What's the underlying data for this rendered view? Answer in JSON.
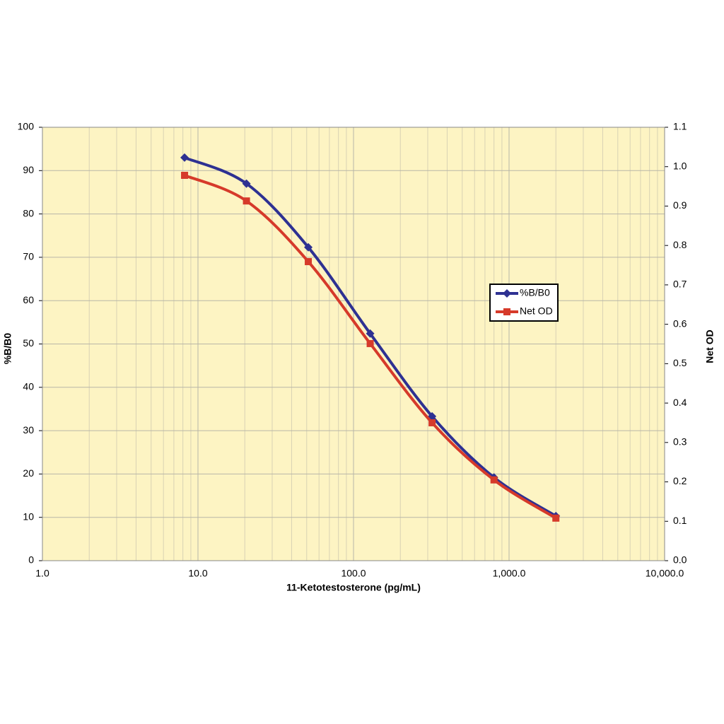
{
  "chart_data": {
    "type": "line",
    "x_label": "11-Ketotestosterone (pg/mL)",
    "y_label": "%B/B0",
    "y2_label": "Net OD",
    "x": [
      8.2,
      20.5,
      51.2,
      128,
      320,
      800,
      2000
    ],
    "series": [
      {
        "name": "%B/B0",
        "color": "#2e3192",
        "marker": "diamond",
        "values": [
          93.0,
          87.0,
          72.3,
          52.4,
          33.3,
          19.2,
          10.3
        ]
      },
      {
        "name": "Net OD",
        "color": "#d63a2a",
        "marker": "square",
        "axis": "y2",
        "values": [
          0.978,
          0.913,
          0.759,
          0.551,
          0.35,
          0.205,
          0.108
        ]
      }
    ],
    "x_log": true,
    "xlim": [
      1,
      10000
    ],
    "xticks": [
      {
        "value": 1,
        "label": "1.0"
      },
      {
        "value": 10,
        "label": "10.0"
      },
      {
        "value": 100,
        "label": "100.0"
      },
      {
        "value": 1000,
        "label": "1,000.0"
      },
      {
        "value": 10000,
        "label": "10,000.0"
      }
    ],
    "ylim": [
      0,
      100
    ],
    "yticks": [
      0,
      10,
      20,
      30,
      40,
      50,
      60,
      70,
      80,
      90,
      100
    ],
    "y2lim": [
      0,
      1.1
    ],
    "y2ticks": [
      {
        "value": 0,
        "label": "0.0"
      },
      0.1,
      0.2,
      0.3,
      0.4,
      0.5,
      0.6,
      0.7,
      0.8,
      0.9,
      {
        "value": 1,
        "label": "1.0"
      },
      1.1
    ],
    "grid": true,
    "legend": "right"
  }
}
